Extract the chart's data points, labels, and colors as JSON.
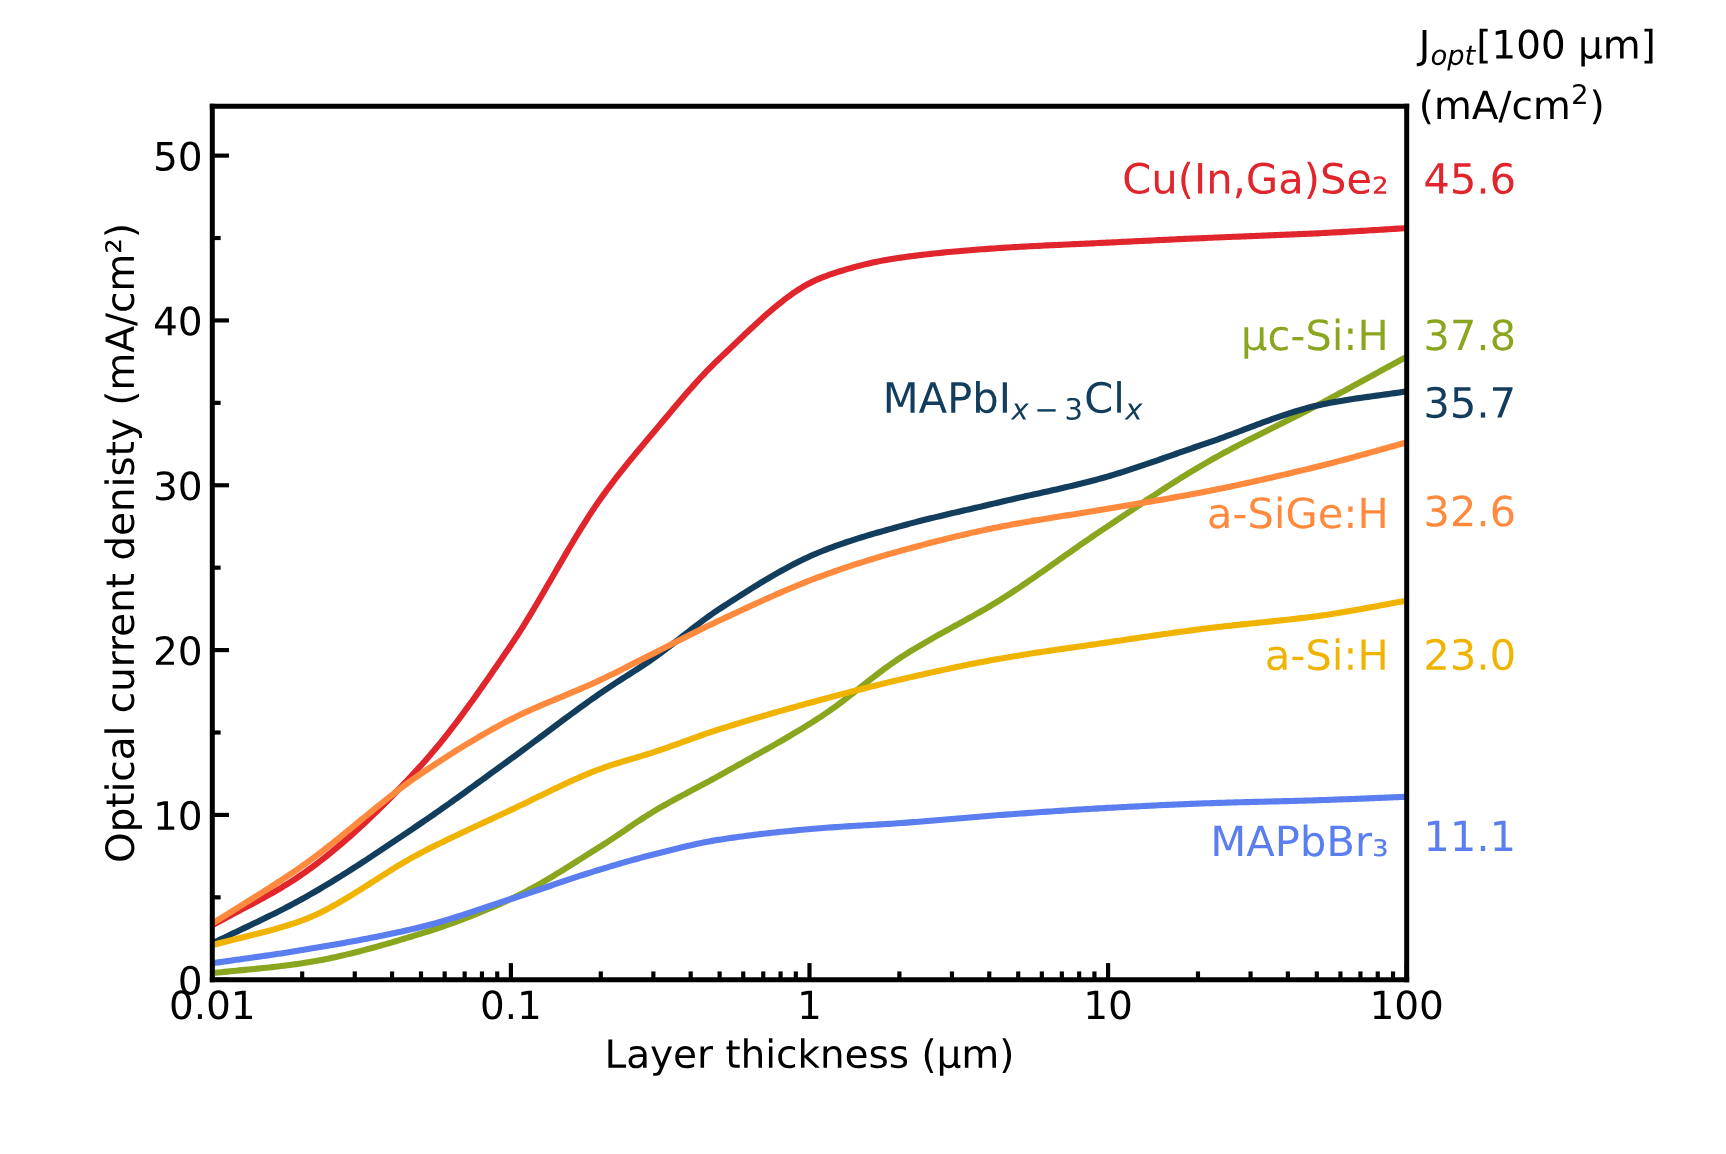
{
  "chart_data": {
    "type": "line",
    "xlabel": "Layer thickness (µm)",
    "ylabel": "Optical current denisty (mA/cm²)",
    "log": "x",
    "xlim": [
      0.01,
      100
    ],
    "xticks": [
      0.01,
      0.1,
      1,
      10,
      100
    ],
    "ylim": [
      0,
      53
    ],
    "yticks": [
      0,
      10,
      20,
      30,
      40,
      50
    ],
    "grid": false,
    "marker": "none",
    "line_style": "solid",
    "annotations": [
      "J$_{opt}$[100 µm]",
      "(mA/cm$^{2}$)"
    ],
    "x": [
      0.01,
      0.02,
      0.05,
      0.1,
      0.2,
      0.3,
      0.5,
      1.1,
      2,
      4.4,
      9.4,
      21,
      52,
      100
    ],
    "series": [
      {
        "name": "Cu(In,Ga)Se₂",
        "color": "#e0252c",
        "values": [
          3.3,
          6.4,
          13,
          20.3,
          29.2,
          33.2,
          37.7,
          42.6,
          43.8,
          44.4,
          44.7,
          45.0,
          45.3,
          45.6
        ],
        "value_labels": [
          null,
          null,
          null,
          null,
          null,
          null,
          null,
          null,
          null,
          null,
          null,
          null,
          null,
          "45.6"
        ]
      },
      {
        "name": "µc-Si:H",
        "color": "#8aa51e",
        "values": [
          0.4,
          1.0,
          2.8,
          4.9,
          8.1,
          10.2,
          12.4,
          16,
          19.5,
          23.1,
          27.2,
          31.3,
          35,
          37.8
        ],
        "value_labels": [
          null,
          null,
          null,
          null,
          null,
          null,
          null,
          null,
          null,
          null,
          null,
          null,
          null,
          "37.8"
        ]
      },
      {
        "name": "MAPbI$_{x−3}$Cl$_{x}$",
        "color": "#123d5c",
        "values": [
          2.2,
          4.9,
          9.5,
          13.4,
          17.4,
          19.5,
          22.5,
          26.0,
          27.5,
          29.0,
          30.4,
          32.5,
          34.9,
          35.7
        ],
        "value_labels": [
          null,
          null,
          null,
          null,
          null,
          null,
          null,
          null,
          null,
          null,
          null,
          null,
          null,
          "35.7"
        ]
      },
      {
        "name": "a-SiGe:H",
        "color": "#ff8a3d",
        "values": [
          3.4,
          6.9,
          12.5,
          15.8,
          18.2,
          19.8,
          21.8,
          24.5,
          26.0,
          27.5,
          28.5,
          29.6,
          31.2,
          32.6
        ],
        "value_labels": [
          null,
          null,
          null,
          null,
          null,
          null,
          null,
          null,
          null,
          null,
          null,
          null,
          null,
          "32.6"
        ]
      },
      {
        "name": "a-Si:H",
        "color": "#f0b400",
        "values": [
          2.1,
          3.6,
          7.7,
          10.3,
          12.8,
          13.8,
          15.2,
          17.0,
          18.2,
          19.5,
          20.4,
          21.3,
          22.1,
          23.0
        ],
        "value_labels": [
          null,
          null,
          null,
          null,
          null,
          null,
          null,
          null,
          null,
          null,
          null,
          null,
          null,
          "23.0"
        ]
      },
      {
        "name": "MAPbBr₃",
        "color": "#5a7ef0",
        "values": [
          1.0,
          1.8,
          3.2,
          4.9,
          6.7,
          7.6,
          8.5,
          9.2,
          9.5,
          10.0,
          10.4,
          10.7,
          10.9,
          11.1
        ],
        "value_labels": [
          null,
          null,
          null,
          null,
          null,
          null,
          null,
          null,
          null,
          null,
          null,
          null,
          null,
          "11.1"
        ]
      }
    ]
  }
}
